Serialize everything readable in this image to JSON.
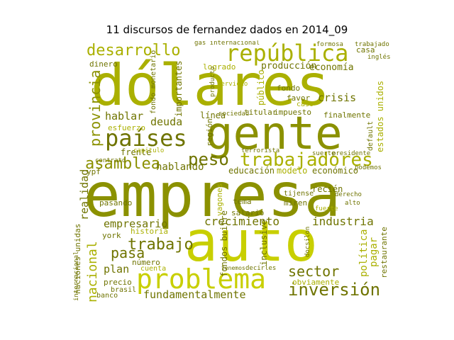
{
  "title": "11 discursos de fernandez dados en 2014_09",
  "palette": [
    "#c8cf00",
    "#aab000",
    "#8b9100",
    "#6f7400",
    "#b9bf1a"
  ],
  "words": [
    {
      "text": "empresa"
    },
    {
      "text": "dólares"
    },
    {
      "text": "auto"
    },
    {
      "text": "gente"
    },
    {
      "text": "república"
    },
    {
      "text": "problema"
    },
    {
      "text": "países"
    },
    {
      "text": "trabajadores"
    },
    {
      "text": "desarrollo"
    },
    {
      "text": "asamblea"
    },
    {
      "text": "provincia"
    },
    {
      "text": "peso"
    },
    {
      "text": "inversión"
    },
    {
      "text": "nacional"
    },
    {
      "text": "trabajo"
    },
    {
      "text": "sector"
    },
    {
      "text": "crecimiento"
    },
    {
      "text": "industria"
    },
    {
      "text": "fundamentalmente"
    },
    {
      "text": "empresario"
    },
    {
      "text": "hablando"
    },
    {
      "text": "economía"
    },
    {
      "text": "producción"
    },
    {
      "text": "educación"
    },
    {
      "text": "modelo"
    },
    {
      "text": "económico"
    },
    {
      "text": "deuda"
    },
    {
      "text": "hablar"
    },
    {
      "text": "pasa"
    },
    {
      "text": "realidad"
    },
    {
      "text": "plan"
    },
    {
      "text": "crisis"
    },
    {
      "text": "fondo"
    },
    {
      "text": "favor"
    },
    {
      "text": "casa"
    },
    {
      "text": "logrado"
    },
    {
      "text": "dinero"
    },
    {
      "text": "frente"
    },
    {
      "text": "esfuerzo"
    },
    {
      "text": "línea"
    },
    {
      "text": "impuesto"
    },
    {
      "text": "finalmente"
    },
    {
      "text": "estados unidos"
    },
    {
      "text": "naciones unidas"
    },
    {
      "text": "política"
    },
    {
      "text": "pagar"
    },
    {
      "text": "restaurante"
    },
    {
      "text": "obviamente"
    },
    {
      "text": "historia"
    },
    {
      "text": "tema"
    },
    {
      "text": "miren"
    },
    {
      "text": "salario"
    },
    {
      "text": "recién"
    },
    {
      "text": "número"
    },
    {
      "text": "cuenta"
    },
    {
      "text": "precio"
    },
    {
      "text": "brasil"
    },
    {
      "text": "banco"
    },
    {
      "text": "ypf"
    },
    {
      "text": "pasando"
    },
    {
      "text": "york"
    },
    {
      "text": "importantes"
    },
    {
      "text": "fondo monetario"
    },
    {
      "text": "región"
    },
    {
      "text": "internacional"
    },
    {
      "text": "vagones"
    },
    {
      "text": "inclusive"
    },
    {
      "text": "titular"
    },
    {
      "text": "público"
    },
    {
      "text": "formosa"
    },
    {
      "text": "trabajado"
    },
    {
      "text": "decirles"
    },
    {
      "text": "fondos buitre"
    },
    {
      "text": "tijense"
    },
    {
      "text": "default"
    },
    {
      "text": "terrorista"
    },
    {
      "text": "sociedad"
    },
    {
      "text": "producto"
    },
    {
      "text": "servicio"
    },
    {
      "text": "gas internacional"
    },
    {
      "text": "capitulo"
    },
    {
      "text": "contrato"
    },
    {
      "text": "tenemos"
    },
    {
      "text": "fuerte"
    },
    {
      "text": "suerte"
    },
    {
      "text": "presidente"
    },
    {
      "text": "derecho"
    },
    {
      "text": "caso"
    },
    {
      "text": "inglés"
    },
    {
      "text": "docsilon"
    },
    {
      "text": "alto"
    },
    {
      "text": "podemos"
    }
  ]
}
